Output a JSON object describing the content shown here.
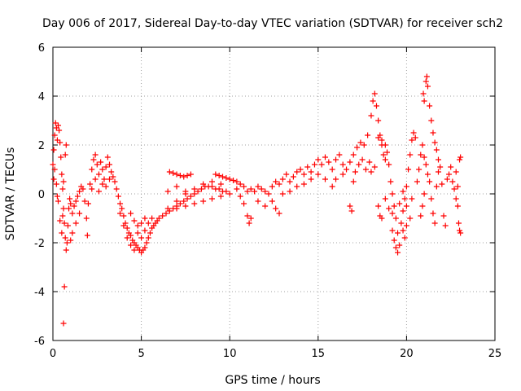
{
  "chart_data": {
    "type": "scatter",
    "title": "Day 006 of 2017, Sidereal Day-to-day VTEC variation (SDTVAR) for receiver sch2",
    "xlabel": "GPS time / hours",
    "ylabel": "SDTVAR / TECUs",
    "xlim": [
      0,
      25
    ],
    "ylim": [
      -6,
      6
    ],
    "x_ticks": [
      0,
      5,
      10,
      15,
      20,
      25
    ],
    "y_ticks": [
      -6,
      -4,
      -2,
      0,
      2,
      4,
      6
    ],
    "x_tick_labels": [
      "0",
      "5",
      "10",
      "15",
      "20",
      "25"
    ],
    "y_tick_labels": [
      "-6",
      "-4",
      "-2",
      "0",
      "2",
      "4",
      "6"
    ],
    "grid": true,
    "marker": "+",
    "marker_color": "#ff0000",
    "series": [
      {
        "name": "SDTVAR",
        "points": [
          [
            0.0,
            1.2
          ],
          [
            0.05,
            1.8
          ],
          [
            0.1,
            2.4
          ],
          [
            0.15,
            2.9
          ],
          [
            0.2,
            2.7
          ],
          [
            0.25,
            2.2
          ],
          [
            0.3,
            2.8
          ],
          [
            0.35,
            2.6
          ],
          [
            0.4,
            2.1
          ],
          [
            0.45,
            1.5
          ],
          [
            0.5,
            0.8
          ],
          [
            0.55,
            0.2
          ],
          [
            0.6,
            -0.6
          ],
          [
            0.65,
            -1.2
          ],
          [
            0.7,
            -1.8
          ],
          [
            0.75,
            -2.3
          ],
          [
            0.8,
            -2.0
          ],
          [
            0.85,
            -1.3
          ],
          [
            0.9,
            -0.6
          ],
          [
            0.95,
            -0.2
          ],
          [
            0.3,
            -0.3
          ],
          [
            0.4,
            -1.1
          ],
          [
            0.5,
            -1.6
          ],
          [
            0.55,
            -0.9
          ],
          [
            0.6,
            0.5
          ],
          [
            0.7,
            1.6
          ],
          [
            0.75,
            2.0
          ],
          [
            0.65,
            -3.8
          ],
          [
            0.6,
            -5.3
          ],
          [
            0.05,
            0.6
          ],
          [
            0.1,
            1.0
          ],
          [
            0.2,
            0.4
          ],
          [
            0.25,
            -0.1
          ],
          [
            1.0,
            -0.4
          ],
          [
            1.1,
            -0.8
          ],
          [
            1.2,
            -0.5
          ],
          [
            1.3,
            -0.3
          ],
          [
            1.4,
            -0.1
          ],
          [
            1.5,
            0.1
          ],
          [
            1.6,
            0.3
          ],
          [
            1.7,
            0.2
          ],
          [
            1.8,
            -0.3
          ],
          [
            1.9,
            -1.0
          ],
          [
            1.95,
            -1.7
          ],
          [
            1.5,
            -0.8
          ],
          [
            1.3,
            -1.2
          ],
          [
            1.1,
            -1.6
          ],
          [
            1.0,
            -1.9
          ],
          [
            2.0,
            -0.4
          ],
          [
            2.1,
            0.4
          ],
          [
            2.2,
            1.0
          ],
          [
            2.3,
            1.4
          ],
          [
            2.4,
            1.6
          ],
          [
            2.5,
            1.2
          ],
          [
            2.6,
            0.8
          ],
          [
            2.7,
            1.3
          ],
          [
            2.8,
            1.0
          ],
          [
            2.9,
            0.6
          ],
          [
            3.0,
            1.1
          ],
          [
            3.1,
            1.5
          ],
          [
            3.2,
            1.2
          ],
          [
            3.3,
            0.9
          ],
          [
            3.4,
            0.7
          ],
          [
            3.5,
            0.5
          ],
          [
            2.2,
            0.2
          ],
          [
            2.4,
            0.6
          ],
          [
            2.6,
            0.1
          ],
          [
            2.8,
            0.4
          ],
          [
            3.0,
            0.3
          ],
          [
            3.2,
            0.6
          ],
          [
            3.6,
            0.2
          ],
          [
            3.7,
            -0.1
          ],
          [
            3.8,
            -0.4
          ],
          [
            3.9,
            -0.6
          ],
          [
            4.0,
            -0.9
          ],
          [
            4.1,
            -1.2
          ],
          [
            4.2,
            -1.4
          ],
          [
            4.3,
            -1.6
          ],
          [
            4.4,
            -1.7
          ],
          [
            4.5,
            -1.9
          ],
          [
            4.6,
            -2.0
          ],
          [
            4.7,
            -2.1
          ],
          [
            4.8,
            -2.2
          ],
          [
            4.9,
            -2.3
          ],
          [
            5.0,
            -2.4
          ],
          [
            5.1,
            -2.3
          ],
          [
            5.2,
            -2.2
          ],
          [
            5.3,
            -2.0
          ],
          [
            5.4,
            -1.8
          ],
          [
            5.5,
            -1.6
          ],
          [
            5.6,
            -1.4
          ],
          [
            5.7,
            -1.3
          ],
          [
            5.8,
            -1.2
          ],
          [
            5.9,
            -1.1
          ],
          [
            6.0,
            -1.0
          ],
          [
            3.8,
            -0.8
          ],
          [
            4.0,
            -1.3
          ],
          [
            4.2,
            -1.8
          ],
          [
            4.4,
            -2.1
          ],
          [
            4.6,
            -2.3
          ],
          [
            4.8,
            -1.6
          ],
          [
            5.0,
            -1.8
          ],
          [
            5.2,
            -1.5
          ],
          [
            5.4,
            -1.2
          ],
          [
            5.6,
            -1.0
          ],
          [
            4.4,
            -0.8
          ],
          [
            4.6,
            -1.1
          ],
          [
            4.8,
            -1.3
          ],
          [
            5.0,
            -1.2
          ],
          [
            5.2,
            -1.0
          ],
          [
            6.2,
            -0.9
          ],
          [
            6.4,
            -0.8
          ],
          [
            6.6,
            -0.7
          ],
          [
            6.8,
            -0.6
          ],
          [
            7.0,
            -0.5
          ],
          [
            7.2,
            -0.4
          ],
          [
            7.4,
            -0.3
          ],
          [
            7.6,
            -0.2
          ],
          [
            7.8,
            -0.1
          ],
          [
            8.0,
            0.0
          ],
          [
            8.2,
            0.1
          ],
          [
            8.4,
            0.2
          ],
          [
            8.6,
            0.3
          ],
          [
            8.8,
            0.3
          ],
          [
            9.0,
            0.3
          ],
          [
            9.2,
            0.2
          ],
          [
            9.4,
            0.2
          ],
          [
            9.6,
            0.1
          ],
          [
            9.8,
            0.1
          ],
          [
            10.0,
            0.0
          ],
          [
            6.5,
            -0.6
          ],
          [
            7.0,
            -0.3
          ],
          [
            7.5,
            0.0
          ],
          [
            8.0,
            0.2
          ],
          [
            8.5,
            0.4
          ],
          [
            9.0,
            0.5
          ],
          [
            9.5,
            0.4
          ],
          [
            7.0,
            -0.6
          ],
          [
            7.5,
            -0.5
          ],
          [
            8.0,
            -0.4
          ],
          [
            8.5,
            -0.3
          ],
          [
            9.0,
            -0.2
          ],
          [
            9.5,
            -0.1
          ],
          [
            6.5,
            0.1
          ],
          [
            7.0,
            0.3
          ],
          [
            7.5,
            0.1
          ],
          [
            6.6,
            0.9
          ],
          [
            6.8,
            0.85
          ],
          [
            7.0,
            0.8
          ],
          [
            7.2,
            0.75
          ],
          [
            7.4,
            0.7
          ],
          [
            7.6,
            0.75
          ],
          [
            7.8,
            0.8
          ],
          [
            9.2,
            0.8
          ],
          [
            9.4,
            0.75
          ],
          [
            9.6,
            0.7
          ],
          [
            9.8,
            0.65
          ],
          [
            10.0,
            0.6
          ],
          [
            10.2,
            0.55
          ],
          [
            10.4,
            0.5
          ],
          [
            10.6,
            0.4
          ],
          [
            10.8,
            0.3
          ],
          [
            11.0,
            0.1
          ],
          [
            11.2,
            0.2
          ],
          [
            11.4,
            0.1
          ],
          [
            11.6,
            0.3
          ],
          [
            11.8,
            0.2
          ],
          [
            12.0,
            0.1
          ],
          [
            12.2,
            0.0
          ],
          [
            12.4,
            0.3
          ],
          [
            12.6,
            0.5
          ],
          [
            12.8,
            0.4
          ],
          [
            13.0,
            0.6
          ],
          [
            13.2,
            0.8
          ],
          [
            13.4,
            0.5
          ],
          [
            13.6,
            0.7
          ],
          [
            13.8,
            0.9
          ],
          [
            14.0,
            1.0
          ],
          [
            14.2,
            0.8
          ],
          [
            14.4,
            1.1
          ],
          [
            14.6,
            0.9
          ],
          [
            14.8,
            1.2
          ],
          [
            15.0,
            1.4
          ],
          [
            15.2,
            1.2
          ],
          [
            15.4,
            1.5
          ],
          [
            15.6,
            1.3
          ],
          [
            15.8,
            1.0
          ],
          [
            16.0,
            1.4
          ],
          [
            16.2,
            1.6
          ],
          [
            16.4,
            1.2
          ],
          [
            10.6,
            -0.1
          ],
          [
            10.8,
            -0.4
          ],
          [
            11.0,
            -0.9
          ],
          [
            11.1,
            -1.2
          ],
          [
            11.2,
            -1.0
          ],
          [
            10.4,
            0.2
          ],
          [
            11.6,
            -0.3
          ],
          [
            12.0,
            -0.5
          ],
          [
            12.4,
            -0.3
          ],
          [
            12.6,
            -0.6
          ],
          [
            12.8,
            -0.8
          ],
          [
            13.0,
            0.0
          ],
          [
            13.4,
            0.1
          ],
          [
            13.8,
            0.3
          ],
          [
            14.2,
            0.4
          ],
          [
            14.6,
            0.6
          ],
          [
            15.0,
            0.8
          ],
          [
            15.4,
            0.6
          ],
          [
            15.8,
            0.3
          ],
          [
            16.0,
            0.6
          ],
          [
            16.4,
            0.8
          ],
          [
            16.6,
            1.0
          ],
          [
            16.8,
            1.3
          ],
          [
            17.0,
            1.6
          ],
          [
            17.2,
            1.9
          ],
          [
            17.4,
            2.1
          ],
          [
            17.6,
            2.0
          ],
          [
            17.8,
            2.4
          ],
          [
            18.0,
            3.2
          ],
          [
            18.1,
            3.8
          ],
          [
            18.2,
            4.1
          ],
          [
            18.3,
            3.6
          ],
          [
            18.4,
            3.0
          ],
          [
            18.5,
            2.4
          ],
          [
            18.6,
            2.0
          ],
          [
            18.7,
            1.6
          ],
          [
            18.8,
            1.4
          ],
          [
            17.0,
            0.5
          ],
          [
            17.1,
            0.9
          ],
          [
            17.3,
            1.2
          ],
          [
            17.5,
            1.4
          ],
          [
            17.7,
            1.0
          ],
          [
            17.9,
            1.3
          ],
          [
            18.0,
            0.9
          ],
          [
            18.2,
            1.1
          ],
          [
            16.8,
            -0.5
          ],
          [
            16.9,
            -0.7
          ],
          [
            18.4,
            2.3
          ],
          [
            18.6,
            2.2
          ],
          [
            18.8,
            2.0
          ],
          [
            18.9,
            1.7
          ],
          [
            19.0,
            1.2
          ],
          [
            19.1,
            0.5
          ],
          [
            19.2,
            0.0
          ],
          [
            19.3,
            -0.5
          ],
          [
            19.4,
            -1.0
          ],
          [
            19.5,
            -1.6
          ],
          [
            19.6,
            -2.1
          ],
          [
            19.5,
            -2.4
          ],
          [
            19.4,
            -2.2
          ],
          [
            19.3,
            -1.9
          ],
          [
            19.2,
            -1.5
          ],
          [
            19.7,
            -1.2
          ],
          [
            19.8,
            -0.7
          ],
          [
            19.9,
            -0.2
          ],
          [
            20.0,
            0.3
          ],
          [
            20.1,
            1.0
          ],
          [
            20.2,
            1.6
          ],
          [
            20.3,
            2.2
          ],
          [
            20.4,
            2.5
          ],
          [
            20.5,
            2.3
          ],
          [
            18.4,
            -0.5
          ],
          [
            18.5,
            -0.9
          ],
          [
            18.6,
            -1.0
          ],
          [
            18.8,
            -0.2
          ],
          [
            19.0,
            -0.6
          ],
          [
            19.2,
            -0.8
          ],
          [
            19.6,
            -0.4
          ],
          [
            19.8,
            0.1
          ],
          [
            20.0,
            -0.5
          ],
          [
            20.2,
            -1.0
          ],
          [
            20.3,
            -0.2
          ],
          [
            19.8,
            -1.5
          ],
          [
            19.9,
            -1.8
          ],
          [
            20.0,
            -1.3
          ],
          [
            20.6,
            0.5
          ],
          [
            20.7,
            1.0
          ],
          [
            20.8,
            1.6
          ],
          [
            20.9,
            2.0
          ],
          [
            21.0,
            3.8
          ],
          [
            20.95,
            4.1
          ],
          [
            21.1,
            4.6
          ],
          [
            21.15,
            4.8
          ],
          [
            21.2,
            4.4
          ],
          [
            21.3,
            3.6
          ],
          [
            21.4,
            3.0
          ],
          [
            21.5,
            2.5
          ],
          [
            21.6,
            2.1
          ],
          [
            21.7,
            1.8
          ],
          [
            21.8,
            1.4
          ],
          [
            21.0,
            1.5
          ],
          [
            21.1,
            1.2
          ],
          [
            21.2,
            0.8
          ],
          [
            21.3,
            0.5
          ],
          [
            21.4,
            -0.2
          ],
          [
            21.5,
            -0.8
          ],
          [
            21.6,
            -1.2
          ],
          [
            21.7,
            0.3
          ],
          [
            21.8,
            0.9
          ],
          [
            21.9,
            1.1
          ],
          [
            22.0,
            0.4
          ],
          [
            22.1,
            -0.9
          ],
          [
            22.2,
            -1.3
          ],
          [
            22.3,
            0.6
          ],
          [
            22.4,
            0.8
          ],
          [
            22.5,
            1.1
          ],
          [
            22.6,
            0.5
          ],
          [
            22.7,
            0.2
          ],
          [
            22.8,
            -0.2
          ],
          [
            22.9,
            -0.5
          ],
          [
            23.0,
            1.4
          ],
          [
            23.05,
            1.5
          ],
          [
            22.95,
            -1.2
          ],
          [
            23.0,
            -1.5
          ],
          [
            23.05,
            -1.6
          ],
          [
            22.8,
            0.9
          ],
          [
            22.9,
            0.3
          ],
          [
            20.8,
            -0.9
          ],
          [
            20.9,
            -0.5
          ],
          [
            21.0,
            0.0
          ]
        ]
      }
    ]
  }
}
